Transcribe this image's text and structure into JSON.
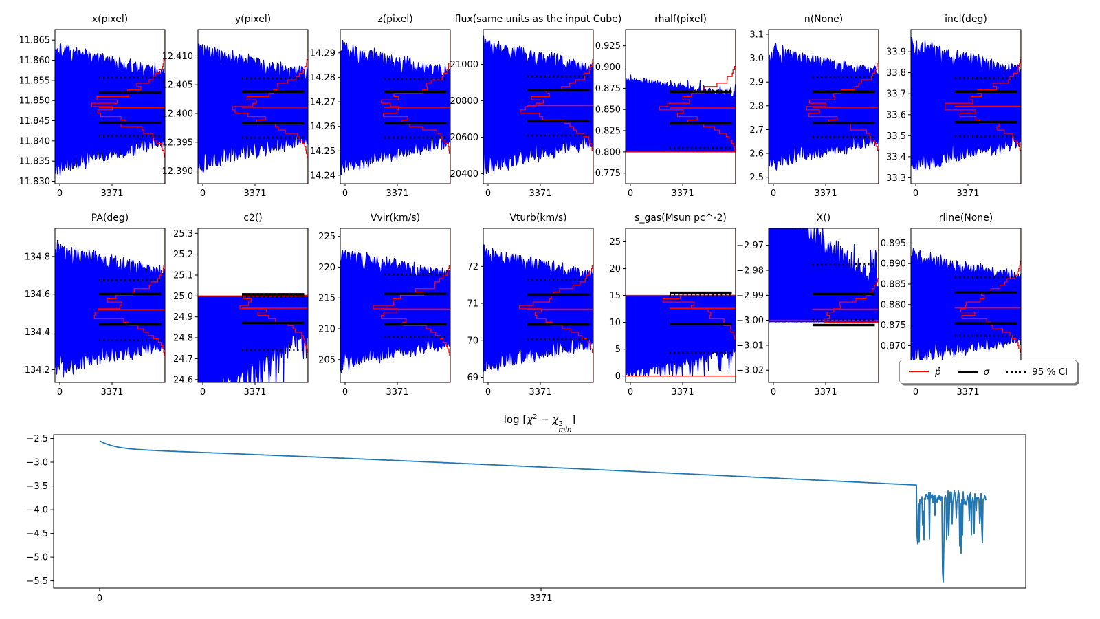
{
  "colors": {
    "trace": "#0000ff",
    "hist_line": "#ff0000",
    "median_line": "#ff0000",
    "stat_line": "#000000",
    "chi_line": "#1f77b4",
    "background": "#ffffff"
  },
  "legend": {
    "items": [
      {
        "label": "p̂",
        "style": "median",
        "color": "#ff0000"
      },
      {
        "label": "σ",
        "style": "sigma",
        "color": "#000000"
      },
      {
        "label": "95 % CI",
        "style": "ci",
        "color": "#000000"
      }
    ]
  },
  "chart_data": [
    {
      "type": "trace-hist",
      "mode": "band",
      "title": "x(pixel)",
      "seed": 101,
      "ylim": [
        11.8294,
        11.8676
      ],
      "yticks": [
        "11.865",
        "11.860",
        "11.855",
        "11.850",
        "11.845",
        "11.840",
        "11.835",
        "11.830"
      ],
      "xticks": [
        "0",
        "3371"
      ],
      "median": 11.8483,
      "sigma": [
        11.852,
        11.8445
      ],
      "ci95": [
        11.8557,
        11.8412
      ],
      "amp": [
        0.0172,
        0.0096
      ],
      "hist": {
        "center": 11.8483,
        "sigma": 0.004
      }
    },
    {
      "type": "trace-hist",
      "mode": "band",
      "title": "y(pixel)",
      "seed": 102,
      "ylim": [
        12.3878,
        12.4146
      ],
      "yticks": [
        "12.410",
        "12.405",
        "12.400",
        "12.395",
        "12.390"
      ],
      "xticks": [
        "0",
        "3371"
      ],
      "median": 12.4011,
      "sigma": [
        12.4038,
        12.3983
      ],
      "ci95": [
        12.4061,
        12.3958
      ],
      "amp": [
        0.0114,
        0.0066
      ],
      "hist": {
        "center": 12.4011,
        "sigma": 0.0028
      }
    },
    {
      "type": "trace-hist",
      "mode": "band",
      "title": "z(pixel)",
      "seed": 103,
      "ylim": [
        14.2366,
        14.2995
      ],
      "yticks": [
        "14.29",
        "14.28",
        "14.27",
        "14.26",
        "14.25",
        "14.24"
      ],
      "xticks": [
        "0",
        "3371"
      ],
      "median": 14.2678,
      "sigma": [
        14.2741,
        14.2613
      ],
      "ci95": [
        14.2793,
        14.2554
      ],
      "amp": [
        0.0275,
        0.016
      ],
      "hist": {
        "center": 14.2678,
        "sigma": 0.0062
      }
    },
    {
      "type": "trace-hist",
      "mode": "band",
      "title": "flux(same units as the input Cube)",
      "seed": 104,
      "ylim": [
        20345,
        21190
      ],
      "yticks": [
        "21000",
        "20800",
        "20600",
        "20400"
      ],
      "xticks": [
        "0",
        "3371"
      ],
      "median": 20773,
      "sigma": [
        20858,
        20687
      ],
      "ci95": [
        20933,
        20610
      ],
      "amp": [
        385,
        230
      ],
      "hist": {
        "center": 20773,
        "sigma": 82
      }
    },
    {
      "type": "trace-hist",
      "mode": "floor",
      "title": "rhalf(pixel)",
      "seed": 105,
      "ylim": [
        0.7626,
        0.9442
      ],
      "yticks": [
        "0.925",
        "0.900",
        "0.875",
        "0.850",
        "0.825",
        "0.800",
        "0.775"
      ],
      "xticks": [
        "0",
        "3371"
      ],
      "median": 0.8518,
      "sigma": [
        0.8708,
        0.8336
      ],
      "ci95": [
        0.8719,
        0.8046
      ],
      "bound": 0.7998,
      "edge": [
        0.889,
        0.8762
      ],
      "rag": 0.0085,
      "spike": [
        0.05,
        0.005
      ],
      "flat_until": 0,
      "hlines": [
        0.8
      ],
      "hist": {
        "center": 0.8525,
        "sigma": 0.0165
      }
    },
    {
      "type": "trace-hist",
      "mode": "band",
      "title": "n(None)",
      "seed": 106,
      "ylim": [
        2.473,
        3.12
      ],
      "yticks": [
        "3.1",
        "3.0",
        "2.9",
        "2.8",
        "2.7",
        "2.6",
        "2.5"
      ],
      "xticks": [
        "0",
        "3371"
      ],
      "median": 2.794,
      "sigma": [
        2.859,
        2.728
      ],
      "ci95": [
        2.92,
        2.668
      ],
      "amp": [
        0.27,
        0.163
      ],
      "hist": {
        "center": 2.794,
        "sigma": 0.063
      }
    },
    {
      "type": "trace-hist",
      "mode": "band",
      "title": "incl(deg)",
      "seed": 107,
      "ylim": [
        33.272,
        34.005
      ],
      "yticks": [
        "33.9",
        "33.8",
        "33.7",
        "33.6",
        "33.5",
        "33.4",
        "33.3"
      ],
      "xticks": [
        "0",
        "3371"
      ],
      "median": 33.64,
      "sigma": [
        33.71,
        33.564
      ],
      "ci95": [
        33.774,
        33.497
      ],
      "amp": [
        0.33,
        0.195
      ],
      "hist": {
        "center": 33.64,
        "sigma": 0.071
      }
    },
    {
      "type": "trace-hist",
      "mode": "band",
      "title": "PA(deg)",
      "seed": 108,
      "ylim": [
        134.132,
        134.949
      ],
      "yticks": [
        "134.8",
        "134.6",
        "134.4",
        "134.2"
      ],
      "xticks": [
        "0",
        "3371"
      ],
      "median": 134.518,
      "sigma": [
        134.601,
        134.44
      ],
      "ci95": [
        134.674,
        134.356
      ],
      "amp": [
        0.36,
        0.22
      ],
      "hist": {
        "center": 134.518,
        "sigma": 0.079
      }
    },
    {
      "type": "trace-hist",
      "mode": "ceil",
      "title": "c2()",
      "seed": 109,
      "ylim": [
        24.586,
        25.324
      ],
      "yticks": [
        "25.3",
        "25.2",
        "25.1",
        "25.0",
        "24.9",
        "24.8",
        "24.7",
        "24.6"
      ],
      "xticks": [
        "0",
        "3371"
      ],
      "median": 24.942,
      "sigma": [
        25.008,
        24.871
      ],
      "ci95": [
        24.997,
        24.741
      ],
      "bound": 24.9985,
      "edge": [
        24.46,
        24.76
      ],
      "rag": 0.11,
      "spike": [
        0.16,
        0.14
      ],
      "hlines": [
        25.0
      ],
      "hist": {
        "center": 24.998,
        "sigma": 0.088
      }
    },
    {
      "type": "trace-hist",
      "mode": "band",
      "title": "Vvir(km/s)",
      "seed": 110,
      "ylim": [
        201.3,
        226.3
      ],
      "yticks": [
        "225",
        "220",
        "215",
        "210",
        "205"
      ],
      "xticks": [
        "0",
        "3371"
      ],
      "median": 213.2,
      "sigma": [
        215.7,
        210.75
      ],
      "ci95": [
        218.8,
        208.7
      ],
      "amp": [
        10.0,
        6.3
      ],
      "hist": {
        "center": 213.2,
        "sigma": 2.4
      }
    },
    {
      "type": "trace-hist",
      "mode": "band",
      "title": "Vturb(km/s)",
      "seed": 111,
      "ylim": [
        68.86,
        73.03
      ],
      "yticks": [
        "72",
        "71",
        "70",
        "69"
      ],
      "xticks": [
        "0",
        "3371"
      ],
      "median": 70.84,
      "sigma": [
        71.235,
        70.43
      ],
      "ci95": [
        71.64,
        70.02
      ],
      "amp": [
        1.75,
        1.05
      ],
      "hist": {
        "center": 70.84,
        "sigma": 0.4
      }
    },
    {
      "type": "trace-hist",
      "mode": "ceil",
      "title": "s_gas(Msun pc^-2)",
      "seed": 112,
      "ylim": [
        -1.19,
        27.5
      ],
      "yticks": [
        "25",
        "20",
        "15",
        "10",
        "5",
        "0"
      ],
      "xticks": [
        "0",
        "3371"
      ],
      "median": 12.62,
      "sigma": [
        15.5,
        9.72
      ],
      "ci95": [
        14.99,
        4.32
      ],
      "bound": 14.97,
      "edge": [
        -0.2,
        4.1
      ],
      "rag": 1.5,
      "spike": [
        0.3,
        3.2
      ],
      "floor_clamp": 0.05,
      "hlines": [
        15.0,
        0.0
      ],
      "hist": {
        "center": 14.95,
        "sigma": 2.7
      }
    },
    {
      "type": "trace-hist",
      "mode": "floor",
      "title": "X()",
      "seed": 113,
      "ylim": [
        -3.0249,
        -2.9632
      ],
      "yticks": [
        "−2.97",
        "−2.98",
        "−2.99",
        "−3.00",
        "−3.01",
        "−3.02"
      ],
      "xticks": [
        "0",
        "3371"
      ],
      "median": -2.9956,
      "sigma": [
        -2.9895,
        -3.0019
      ],
      "ci95": [
        -2.9777,
        -2.9998
      ],
      "bound": -3.0007,
      "edge": [
        -2.95,
        -2.9763
      ],
      "rag": 0.0085,
      "spike": [
        0.06,
        0.004
      ],
      "flat_until": 0.22,
      "hlines": [
        -3.0
      ],
      "hist": {
        "center": -2.9999,
        "sigma": 0.0055
      }
    },
    {
      "type": "trace-hist",
      "mode": "band",
      "title": "rline(None)",
      "seed": 114,
      "ylim": [
        0.861,
        0.8986
      ],
      "yticks": [
        "0.895",
        "0.890",
        "0.885",
        "0.880",
        "0.875",
        "0.870"
      ],
      "xticks": [
        "0",
        "3371"
      ],
      "median": 0.8792,
      "sigma": [
        0.883,
        0.8754
      ],
      "ci95": [
        0.8867,
        0.8724
      ],
      "amp": [
        0.0143,
        0.0086
      ],
      "hist": {
        "center": 0.8792,
        "sigma": 0.0036
      }
    },
    {
      "type": "line",
      "seed": 77,
      "title_text": "log [χ^2 − χ^2_min]",
      "title_parts": {
        "lead": "log [",
        "chi1": "χ",
        "sup1": "2",
        "minus": " − ",
        "chi2": "χ",
        "sup2": "2",
        "sub2": "min",
        "close": "]"
      },
      "ylim": [
        -5.65,
        -2.42
      ],
      "yticks": [
        "−2.5",
        "−3.0",
        "−3.5",
        "−4.0",
        "−4.5",
        "−5.0",
        "−5.5"
      ],
      "xticks": [
        "0",
        "3371"
      ],
      "start_value": -2.55,
      "end_smooth_value": -3.48,
      "noise_band": [
        -3.5,
        -4.0
      ],
      "deepest_spike": -5.52,
      "color": "#1f77b4"
    }
  ]
}
